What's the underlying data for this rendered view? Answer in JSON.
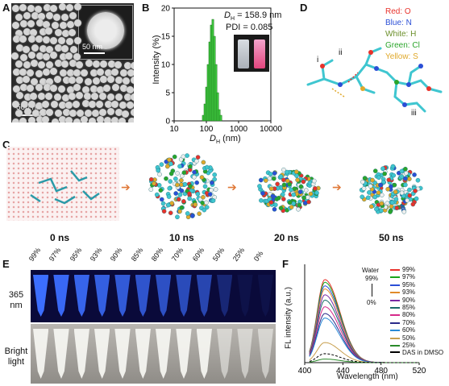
{
  "panels": {
    "A": {
      "label": "A",
      "scale_main": "500 nm",
      "scale_inset": "50 nm"
    },
    "B": {
      "label": "B",
      "dh_text": "D",
      "dh_sub": "H",
      "dh_value": " = 158.9 nm",
      "pdi": "PDI = 0.085",
      "xlabel_main": "D",
      "xlabel_sub": "H",
      "xlabel_unit": " (nm)",
      "ylabel": "Intensity (%)"
    },
    "C": {
      "label": "C",
      "times": [
        "0 ns",
        "10 ns",
        "20 ns",
        "50 ns"
      ]
    },
    "D": {
      "label": "D",
      "markers": [
        "i",
        "ii",
        "iii"
      ],
      "legend": [
        {
          "text": "Red: O",
          "color": "#e8322b"
        },
        {
          "text": "Blue: N",
          "color": "#2b4fd6"
        },
        {
          "text": "White: H",
          "color": "#6b8f2a"
        },
        {
          "text": "Green: Cl",
          "color": "#2aa52a"
        },
        {
          "text": "Yellow: S",
          "color": "#e0a82a"
        }
      ]
    },
    "E": {
      "label": "E",
      "row1": "365\nnm",
      "row1a": "365",
      "row1b": "nm",
      "row2a": "Bright",
      "row2b": "light",
      "percents": [
        "99%",
        "97%",
        "95%",
        "93%",
        "90%",
        "85%",
        "80%",
        "70%",
        "60%",
        "50%",
        "25%",
        "0%"
      ]
    },
    "F": {
      "label": "F",
      "ylabel": "FL intensity (a.u.)",
      "xlabel": "Wavelength (nm)",
      "annot_water": "Water",
      "annot_99": "99%",
      "annot_0": "0%"
    }
  },
  "chart_data": [
    {
      "type": "bar",
      "panel": "B",
      "x_scale": "log",
      "xlim": [
        10,
        10000
      ],
      "ylim": [
        0,
        20
      ],
      "xticks": [
        "10",
        "100",
        "1000",
        "10000"
      ],
      "yticks": [
        "0",
        "5",
        "10",
        "15",
        "20"
      ],
      "bars": [
        {
          "x": 80,
          "value": 1
        },
        {
          "x": 90,
          "value": 3
        },
        {
          "x": 101,
          "value": 6
        },
        {
          "x": 113,
          "value": 10
        },
        {
          "x": 127,
          "value": 14
        },
        {
          "x": 142,
          "value": 17
        },
        {
          "x": 159,
          "value": 18
        },
        {
          "x": 178,
          "value": 15
        },
        {
          "x": 200,
          "value": 10
        },
        {
          "x": 224,
          "value": 5
        },
        {
          "x": 251,
          "value": 2
        },
        {
          "x": 282,
          "value": 1
        }
      ],
      "bar_color": "#3cc33c"
    },
    {
      "type": "line",
      "panel": "F",
      "xlim": [
        400,
        520
      ],
      "ylim": [
        0,
        220
      ],
      "xticks": [
        "400",
        "440",
        "480",
        "520"
      ],
      "yticks": [
        "0",
        "40",
        "80",
        "120",
        "160",
        "200"
      ],
      "series": [
        {
          "name": "99%",
          "peak": 186,
          "color": "#e8322b"
        },
        {
          "name": "97%",
          "peak": 180,
          "color": "#1aa51a"
        },
        {
          "name": "95%",
          "peak": 172,
          "color": "#2b4fd6"
        },
        {
          "name": "93%",
          "peak": 165,
          "color": "#e08a2a"
        },
        {
          "name": "90%",
          "peak": 152,
          "color": "#7a2aa5"
        },
        {
          "name": "85%",
          "peak": 140,
          "color": "#1a6a6a"
        },
        {
          "name": "80%",
          "peak": 125,
          "color": "#d62a8a"
        },
        {
          "name": "70%",
          "peak": 110,
          "color": "#2a2a8a"
        },
        {
          "name": "60%",
          "peak": 100,
          "color": "#2a8ad6"
        },
        {
          "name": "50%",
          "peak": 45,
          "color": "#c8a050"
        },
        {
          "name": "25%",
          "peak": 8,
          "color": "#2a8a2a"
        },
        {
          "name": "DAS in DMSO",
          "peak": 20,
          "color": "#000000",
          "dashed": true
        }
      ]
    }
  ]
}
